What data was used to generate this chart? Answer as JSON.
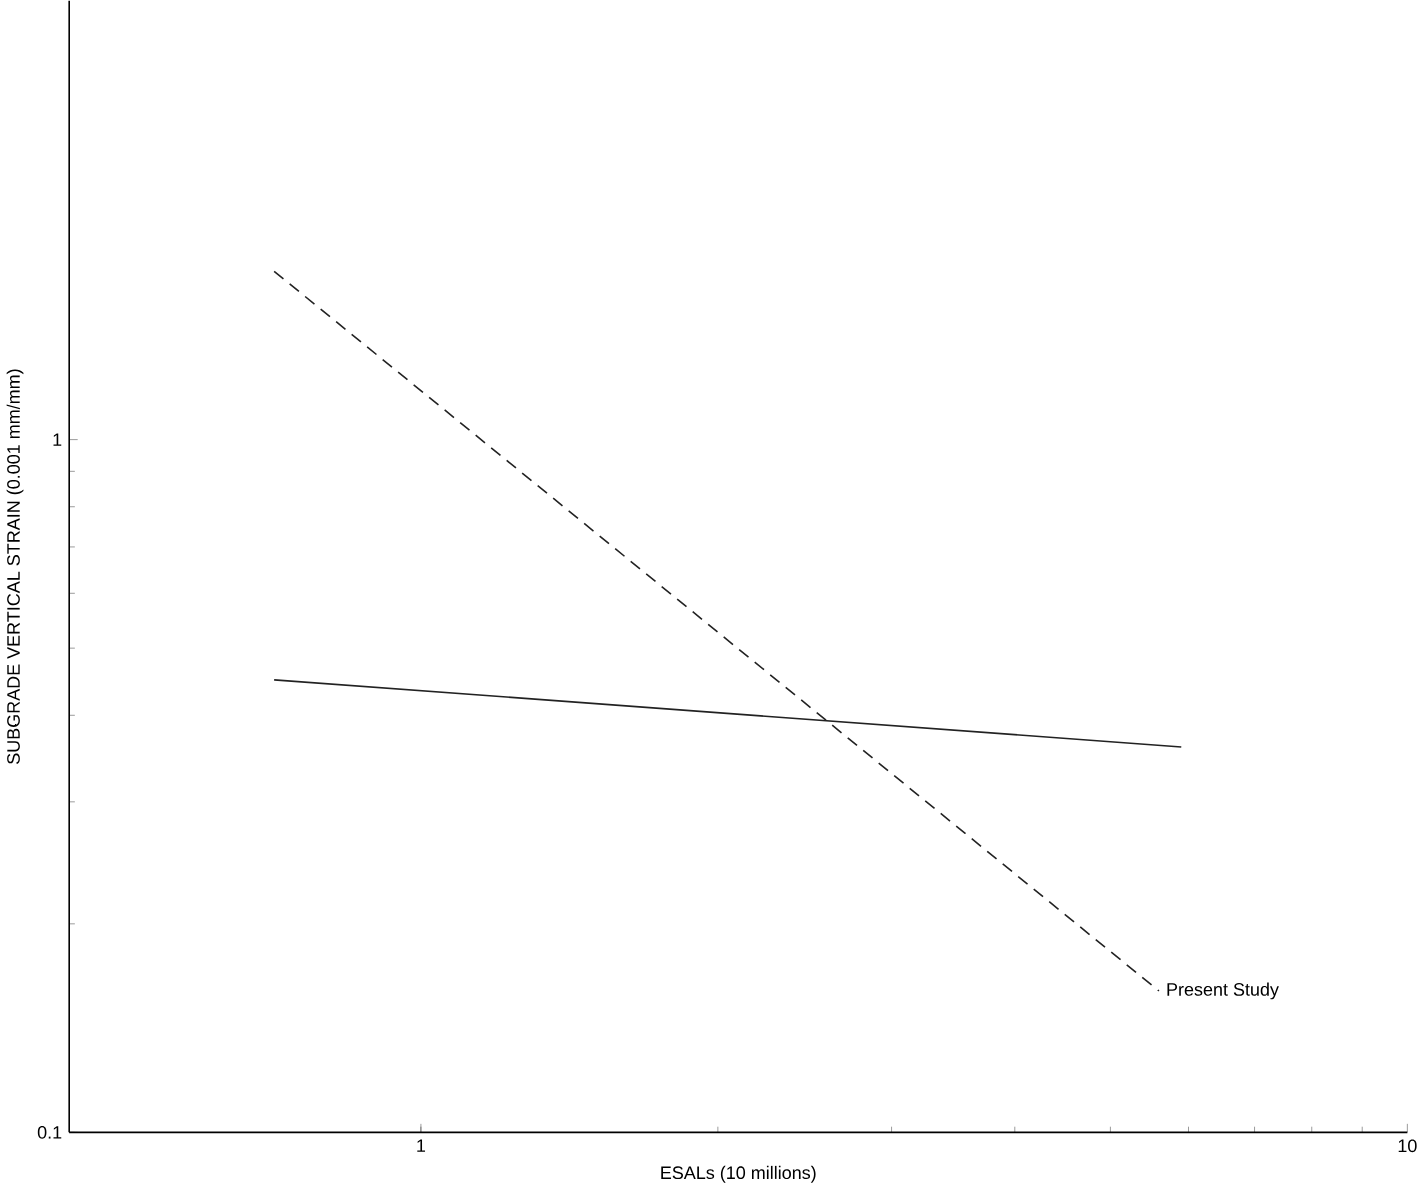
{
  "chart_data": {
    "type": "line",
    "xlabel": "ESALs (10 millions)",
    "ylabel": "SUBGRADE VERTICAL STRAIN (0.001 mm/mm)",
    "log": "xy",
    "xlim": [
      0.44,
      10
    ],
    "ylim": [
      0.1,
      4.3
    ],
    "xticks": [
      1,
      10
    ],
    "yticks": [
      0.1,
      1
    ],
    "grid": false,
    "marker": "none",
    "series": [
      {
        "color": "#222222",
        "line_style": "solid",
        "x": [
          0.71,
          5.9
        ],
        "values": [
          0.45,
          0.36
        ]
      },
      {
        "name": "Present Study",
        "color": "#222222",
        "line_style": "dashed",
        "x": [
          0.71,
          5.6
        ],
        "values": [
          1.75,
          0.16
        ]
      }
    ]
  }
}
